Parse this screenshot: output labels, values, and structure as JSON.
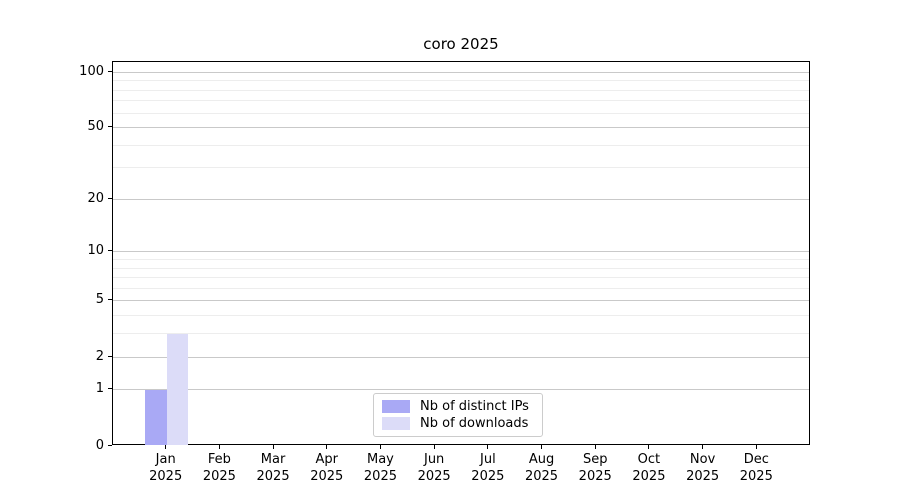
{
  "page": {
    "background": "#ffffff"
  },
  "chart_data": {
    "type": "bar",
    "title": "coro 2025",
    "categories": [
      "Jan",
      "Feb",
      "Mar",
      "Apr",
      "May",
      "Jun",
      "Jul",
      "Aug",
      "Sep",
      "Oct",
      "Nov",
      "Dec"
    ],
    "x_tick_year": "2025",
    "series": [
      {
        "name": "Nb of distinct IPs",
        "color": "#a9a9f5",
        "values": [
          1,
          0,
          0,
          0,
          0,
          0,
          0,
          0,
          0,
          0,
          0,
          0
        ]
      },
      {
        "name": "Nb of downloads",
        "color": "#dcdcf8",
        "values": [
          3,
          0,
          0,
          0,
          0,
          0,
          0,
          0,
          0,
          0,
          0,
          0
        ]
      }
    ],
    "yaxis": {
      "scale": "log1p",
      "ticks": [
        0,
        1,
        2,
        5,
        10,
        20,
        50,
        100
      ],
      "minor_ticks": [
        3,
        4,
        6,
        7,
        8,
        9,
        30,
        40,
        60,
        70,
        80,
        90
      ],
      "max_log10_1p": 2.059,
      "ylim": [
        0,
        115
      ]
    },
    "grid": {
      "major_color": "#c9c9c9",
      "minor_color": "#ededed"
    },
    "legend": {
      "position": "lower center inside"
    }
  }
}
